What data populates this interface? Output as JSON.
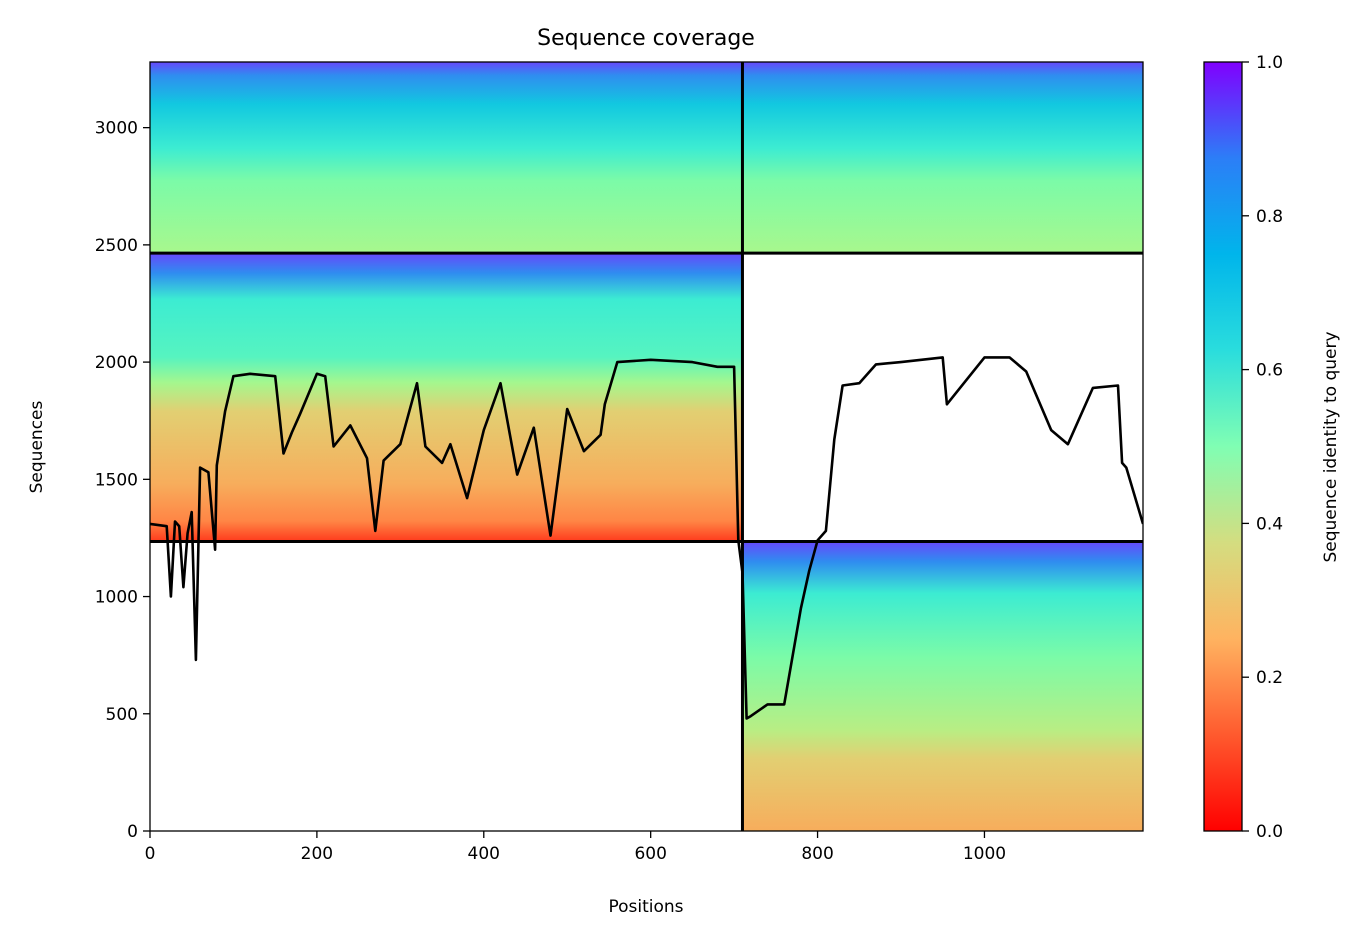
{
  "chart_data": {
    "type": "heatmap",
    "title": "Sequence coverage",
    "xlabel": "Positions",
    "ylabel": "Sequences",
    "xlim": [
      0,
      1190
    ],
    "ylim": [
      0,
      3280
    ],
    "x_ticks": [
      0,
      200,
      400,
      600,
      800,
      1000
    ],
    "y_ticks": [
      0,
      500,
      1000,
      1500,
      2000,
      2500,
      3000
    ],
    "colorbar": {
      "label": "Sequence identity to query",
      "range": [
        0,
        1
      ],
      "ticks": [
        "0.0",
        "0.2",
        "0.4",
        "0.6",
        "0.8",
        "1.0"
      ],
      "colormap": "rainbow"
    },
    "chain_boundary_x": 710,
    "block_boundaries_y": [
      1235,
      2465
    ],
    "blocks": [
      {
        "x0": 0,
        "x1": 710,
        "y0": 2465,
        "y1": 3280,
        "identity_top": 0.9,
        "identity_bottom": 0.42
      },
      {
        "x0": 710,
        "x1": 1190,
        "y0": 2465,
        "y1": 3280,
        "identity_top": 0.9,
        "identity_bottom": 0.42
      },
      {
        "x0": 0,
        "x1": 710,
        "y0": 1235,
        "y1": 2465,
        "identity_top": 0.9,
        "identity_bottom": 0.1
      },
      {
        "x0": 710,
        "x1": 1190,
        "y0": 0,
        "y1": 1235,
        "identity_top": 0.9,
        "identity_bottom": 0.28
      }
    ],
    "coverage_line": {
      "x": [
        0,
        20,
        25,
        30,
        35,
        40,
        45,
        50,
        55,
        60,
        70,
        78,
        80,
        90,
        100,
        120,
        150,
        160,
        170,
        180,
        200,
        210,
        220,
        240,
        260,
        270,
        280,
        300,
        320,
        330,
        350,
        360,
        380,
        400,
        420,
        440,
        460,
        480,
        500,
        520,
        540,
        545,
        560,
        600,
        650,
        680,
        700,
        705,
        710,
        715,
        720,
        740,
        760,
        780,
        790,
        800,
        810,
        820,
        830,
        850,
        870,
        900,
        950,
        955,
        1000,
        1030,
        1050,
        1080,
        1100,
        1130,
        1160,
        1165,
        1170,
        1190
      ],
      "y": [
        1310,
        1300,
        1000,
        1320,
        1300,
        1040,
        1270,
        1360,
        730,
        1550,
        1530,
        1200,
        1560,
        1790,
        1940,
        1950,
        1940,
        1610,
        1700,
        1780,
        1950,
        1940,
        1640,
        1730,
        1590,
        1280,
        1580,
        1650,
        1910,
        1640,
        1570,
        1650,
        1420,
        1710,
        1910,
        1520,
        1720,
        1260,
        1800,
        1620,
        1690,
        1820,
        2000,
        2010,
        2000,
        1980,
        1980,
        1240,
        1100,
        480,
        490,
        540,
        540,
        950,
        1110,
        1240,
        1280,
        1670,
        1900,
        1910,
        1990,
        2000,
        2020,
        1820,
        2020,
        2020,
        1960,
        1710,
        1650,
        1890,
        1900,
        1570,
        1550,
        1310
      ]
    }
  }
}
